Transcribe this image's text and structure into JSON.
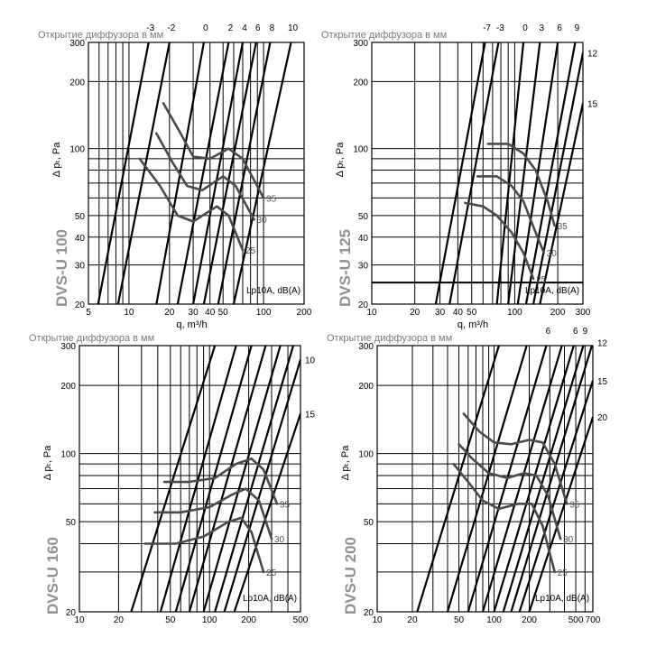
{
  "chart_data": [
    {
      "type": "line",
      "title": "DVS-U 100",
      "header": "Открытие диффузора в мм",
      "xlabel": "q, m³/h",
      "ylabel": "Δ pₜ, Pa",
      "xscale": "log",
      "yscale": "log",
      "xlim": [
        5,
        200
      ],
      "ylim": [
        20,
        300
      ],
      "xticks": [
        5,
        10,
        20,
        30,
        40,
        50,
        100,
        200
      ],
      "yticks": [
        20,
        30,
        40,
        50,
        100,
        200,
        300
      ],
      "openings": [
        {
          "label": "-3",
          "points": [
            [
              5.9,
              20
            ],
            [
              14,
              300
            ]
          ]
        },
        {
          "label": "-2",
          "points": [
            [
              8.3,
              20
            ],
            [
              20,
              300
            ]
          ]
        },
        {
          "label": "0",
          "points": [
            [
              16,
              20
            ],
            [
              36,
              300
            ]
          ]
        },
        {
          "label": "2",
          "points": [
            [
              23,
              20
            ],
            [
              55,
              300
            ]
          ]
        },
        {
          "label": "4",
          "points": [
            [
              30,
              20
            ],
            [
              70,
              300
            ]
          ]
        },
        {
          "label": "6",
          "points": [
            [
              36,
              20
            ],
            [
              88,
              300
            ]
          ]
        },
        {
          "label": "8",
          "points": [
            [
              46,
              20
            ],
            [
              112,
              300
            ]
          ]
        },
        {
          "label": "10",
          "points": [
            [
              60,
              20
            ],
            [
              160,
              300
            ]
          ]
        }
      ],
      "noise_level_label": "Lp10A, dB(A)",
      "noise_curves": [
        {
          "label": "35",
          "points": [
            [
              18,
              160
            ],
            [
              24,
              118
            ],
            [
              30,
              92
            ],
            [
              40,
              90
            ],
            [
              55,
              100
            ],
            [
              70,
              90
            ],
            [
              100,
              60
            ]
          ]
        },
        {
          "label": "30",
          "points": [
            [
              16,
              117
            ],
            [
              21,
              87
            ],
            [
              27,
              68
            ],
            [
              35,
              65
            ],
            [
              50,
              75
            ],
            [
              62,
              68
            ],
            [
              85,
              48
            ]
          ]
        },
        {
          "label": "25",
          "points": [
            [
              12,
              90
            ],
            [
              17,
              68
            ],
            [
              23,
              50
            ],
            [
              30,
              47
            ],
            [
              45,
              55
            ],
            [
              55,
              50
            ],
            [
              70,
              35
            ]
          ]
        }
      ]
    },
    {
      "type": "line",
      "title": "DVS-U 125",
      "header": "Открытие диффузора в мм",
      "xlabel": "q, m³/h",
      "ylabel": "Δ pₜ, Pa",
      "xscale": "log",
      "yscale": "log",
      "xlim": [
        10,
        300
      ],
      "ylim": [
        20,
        300
      ],
      "xticks": [
        10,
        20,
        30,
        40,
        50,
        100,
        200,
        300
      ],
      "yticks": [
        20,
        30,
        40,
        50,
        100,
        200,
        300
      ],
      "openings": [
        {
          "label": "-7",
          "points": [
            [
              28,
              20
            ],
            [
              62,
              300
            ]
          ]
        },
        {
          "label": "-3",
          "points": [
            [
              35,
              20
            ],
            [
              77,
              300
            ]
          ]
        },
        {
          "label": "0",
          "points": [
            [
              75,
              20
            ],
            [
              115,
              300
            ]
          ]
        },
        {
          "label": "3",
          "points": [
            [
              90,
              20
            ],
            [
              150,
              300
            ]
          ]
        },
        {
          "label": "6",
          "points": [
            [
              105,
              20
            ],
            [
              200,
              300
            ]
          ]
        },
        {
          "label": "9",
          "points": [
            [
              120,
              20
            ],
            [
              265,
              300
            ]
          ]
        },
        {
          "label": "12",
          "points": [
            [
              135,
              20
            ],
            [
              300,
              270
            ]
          ]
        },
        {
          "label": "15",
          "points": [
            [
              150,
              20
            ],
            [
              300,
              160
            ]
          ]
        }
      ],
      "reference_line": 25,
      "noise_level_label": "Lp10A, dB(A)",
      "noise_curves": [
        {
          "label": "35",
          "points": [
            [
              65,
              105
            ],
            [
              90,
              105
            ],
            [
              115,
              95
            ],
            [
              140,
              80
            ],
            [
              170,
              58
            ],
            [
              190,
              45
            ]
          ]
        },
        {
          "label": "30",
          "points": [
            [
              55,
              75
            ],
            [
              75,
              75
            ],
            [
              95,
              68
            ],
            [
              115,
              58
            ],
            [
              140,
              42
            ],
            [
              160,
              34
            ]
          ]
        },
        {
          "label": "25",
          "points": [
            [
              45,
              57
            ],
            [
              60,
              55
            ],
            [
              75,
              50
            ],
            [
              95,
              42
            ],
            [
              115,
              34
            ],
            [
              135,
              26
            ]
          ]
        }
      ]
    },
    {
      "type": "line",
      "title": "DVS-U 160",
      "header": "Открытие диффузора в мм",
      "xlabel": "",
      "ylabel": "Δ pₜ, Pa",
      "xscale": "log",
      "yscale": "log",
      "xlim": [
        10,
        500
      ],
      "ylim": [
        20,
        300
      ],
      "xticks": [
        10,
        20,
        50,
        100,
        200,
        500
      ],
      "yticks": [
        20,
        50,
        100,
        200,
        300
      ],
      "openings": [
        {
          "label": "",
          "points": [
            [
              25,
              20
            ],
            [
              110,
              300
            ]
          ]
        },
        {
          "label": "",
          "points": [
            [
              42,
              20
            ],
            [
              160,
              300
            ]
          ]
        },
        {
          "label": "",
          "points": [
            [
              55,
              20
            ],
            [
              210,
              300
            ]
          ]
        },
        {
          "label": "",
          "points": [
            [
              70,
              20
            ],
            [
              270,
              300
            ]
          ]
        },
        {
          "label": "",
          "points": [
            [
              90,
              20
            ],
            [
              350,
              300
            ]
          ]
        },
        {
          "label": "",
          "points": [
            [
              110,
              20
            ],
            [
              440,
              300
            ]
          ]
        },
        {
          "label": "10",
          "points": [
            [
              130,
              20
            ],
            [
              500,
              260
            ]
          ]
        },
        {
          "label": "15",
          "points": [
            [
              155,
              20
            ],
            [
              500,
              150
            ]
          ]
        }
      ],
      "noise_level_label": "Lp10A, dB(A)",
      "noise_curves": [
        {
          "label": "35",
          "points": [
            [
              45,
              75
            ],
            [
              70,
              75
            ],
            [
              110,
              78
            ],
            [
              160,
              90
            ],
            [
              210,
              95
            ],
            [
              260,
              85
            ],
            [
              330,
              60
            ]
          ]
        },
        {
          "label": "30",
          "points": [
            [
              38,
              55
            ],
            [
              60,
              55
            ],
            [
              100,
              58
            ],
            [
              150,
              66
            ],
            [
              190,
              70
            ],
            [
              240,
              62
            ],
            [
              300,
              42
            ]
          ]
        },
        {
          "label": "25",
          "points": [
            [
              32,
              40
            ],
            [
              55,
              40
            ],
            [
              90,
              43
            ],
            [
              140,
              50
            ],
            [
              175,
              52
            ],
            [
              210,
              45
            ],
            [
              260,
              30
            ]
          ]
        }
      ]
    },
    {
      "type": "line",
      "title": "DVS-U 200",
      "header": "Открытие диффузора в мм",
      "xlabel": "",
      "ylabel": "Δ pₜ, Pa",
      "xscale": "log",
      "yscale": "log",
      "xlim": [
        10,
        700
      ],
      "ylim": [
        20,
        300
      ],
      "xticks": [
        10,
        20,
        50,
        100,
        200,
        500,
        700
      ],
      "yticks": [
        20,
        50,
        100,
        200,
        300
      ],
      "openings": [
        {
          "label": "",
          "points": [
            [
              22,
              20
            ],
            [
              110,
              300
            ]
          ]
        },
        {
          "label": "",
          "points": [
            [
              40,
              20
            ],
            [
              190,
              300
            ]
          ]
        },
        {
          "label": "6",
          "points": [
            [
              60,
              20
            ],
            [
              280,
              300
            ]
          ]
        },
        {
          "label": "",
          "points": [
            [
              80,
              20
            ],
            [
              380,
              300
            ]
          ]
        },
        {
          "label": "6",
          "points": [
            [
              100,
              20
            ],
            [
              480,
              300
            ]
          ]
        },
        {
          "label": "9",
          "points": [
            [
              120,
              20
            ],
            [
              580,
              300
            ]
          ]
        },
        {
          "label": "12",
          "points": [
            [
              140,
              20
            ],
            [
              700,
              310
            ]
          ]
        },
        {
          "label": "15",
          "points": [
            [
              165,
              20
            ],
            [
              700,
              210
            ]
          ]
        },
        {
          "label": "20",
          "points": [
            [
              200,
              20
            ],
            [
              700,
              145
            ]
          ]
        }
      ],
      "noise_level_label": "Lp10A, dB(A)",
      "noise_curves": [
        {
          "label": "35",
          "points": [
            [
              55,
              150
            ],
            [
              75,
              125
            ],
            [
              100,
              112
            ],
            [
              140,
              110
            ],
            [
              200,
              115
            ],
            [
              260,
              112
            ],
            [
              330,
              90
            ],
            [
              420,
              60
            ]
          ]
        },
        {
          "label": "30",
          "points": [
            [
              50,
              110
            ],
            [
              65,
              95
            ],
            [
              90,
              82
            ],
            [
              130,
              78
            ],
            [
              180,
              82
            ],
            [
              230,
              80
            ],
            [
              290,
              65
            ],
            [
              370,
              42
            ]
          ]
        },
        {
          "label": "25",
          "points": [
            [
              45,
              90
            ],
            [
              60,
              75
            ],
            [
              80,
              62
            ],
            [
              110,
              57
            ],
            [
              160,
              60
            ],
            [
              210,
              60
            ],
            [
              260,
              48
            ],
            [
              330,
              30
            ]
          ]
        }
      ]
    }
  ]
}
